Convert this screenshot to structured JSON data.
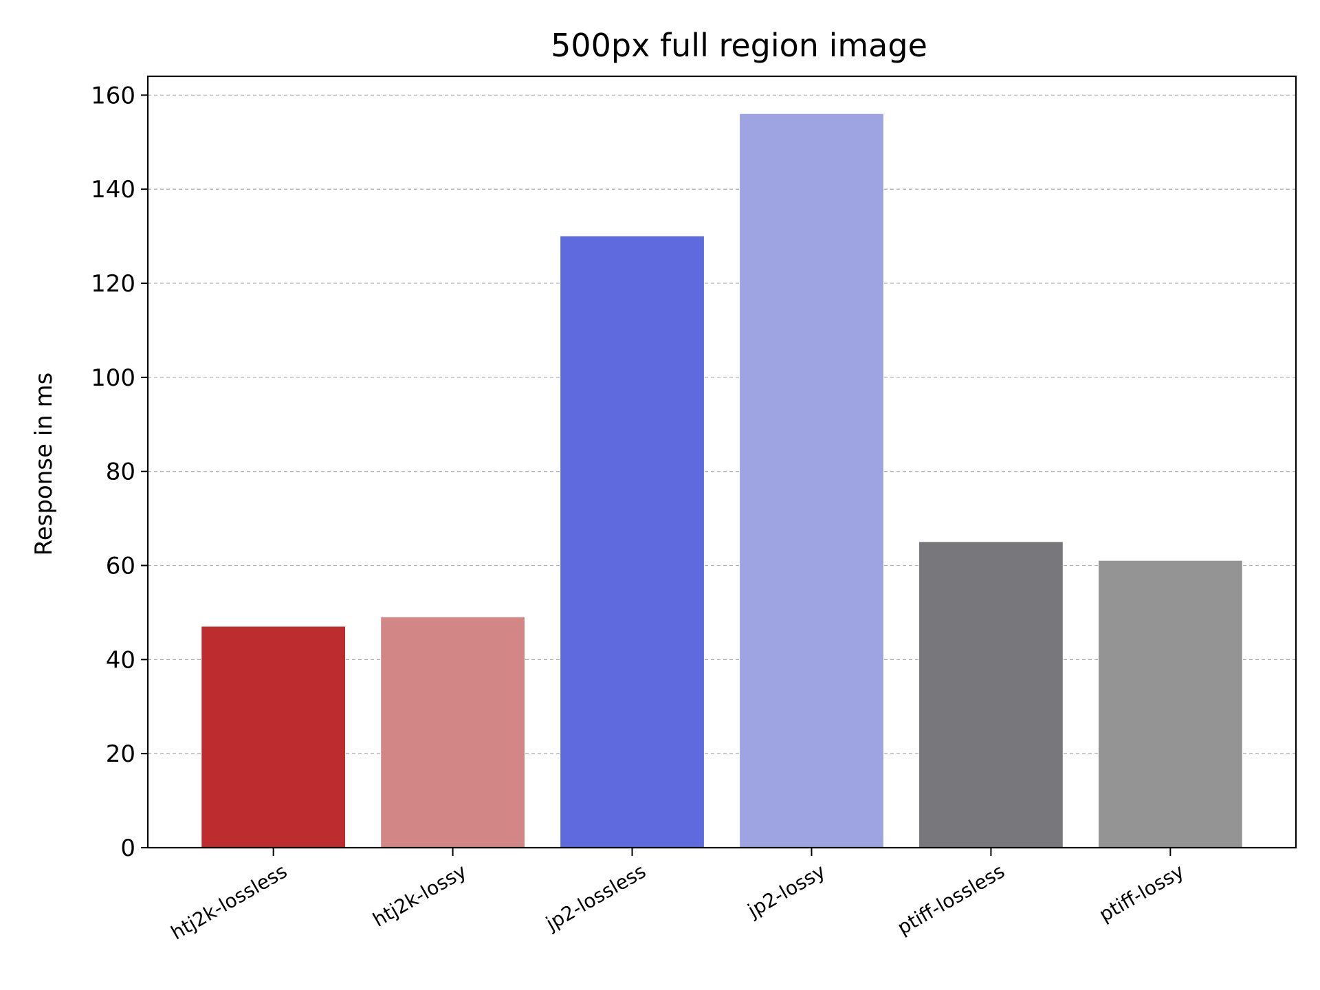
{
  "chart_data": {
    "type": "bar",
    "title": "500px full region image",
    "xlabel": "",
    "ylabel": "Response in ms",
    "categories": [
      "htj2k-lossless",
      "htj2k-lossy",
      "jp2-lossless",
      "jp2-lossy",
      "ptiff-lossless",
      "ptiff-lossy"
    ],
    "values": [
      47,
      49,
      130,
      156,
      65,
      61
    ],
    "colors": [
      "#bd2c2e",
      "#d28686",
      "#5e6ade",
      "#9ea4e1",
      "#78787c",
      "#949495"
    ],
    "ylim": [
      0,
      164
    ],
    "yticks": [
      0,
      20,
      40,
      60,
      80,
      100,
      120,
      140,
      160
    ],
    "grid": true,
    "x_tick_rotation_deg": 30
  }
}
